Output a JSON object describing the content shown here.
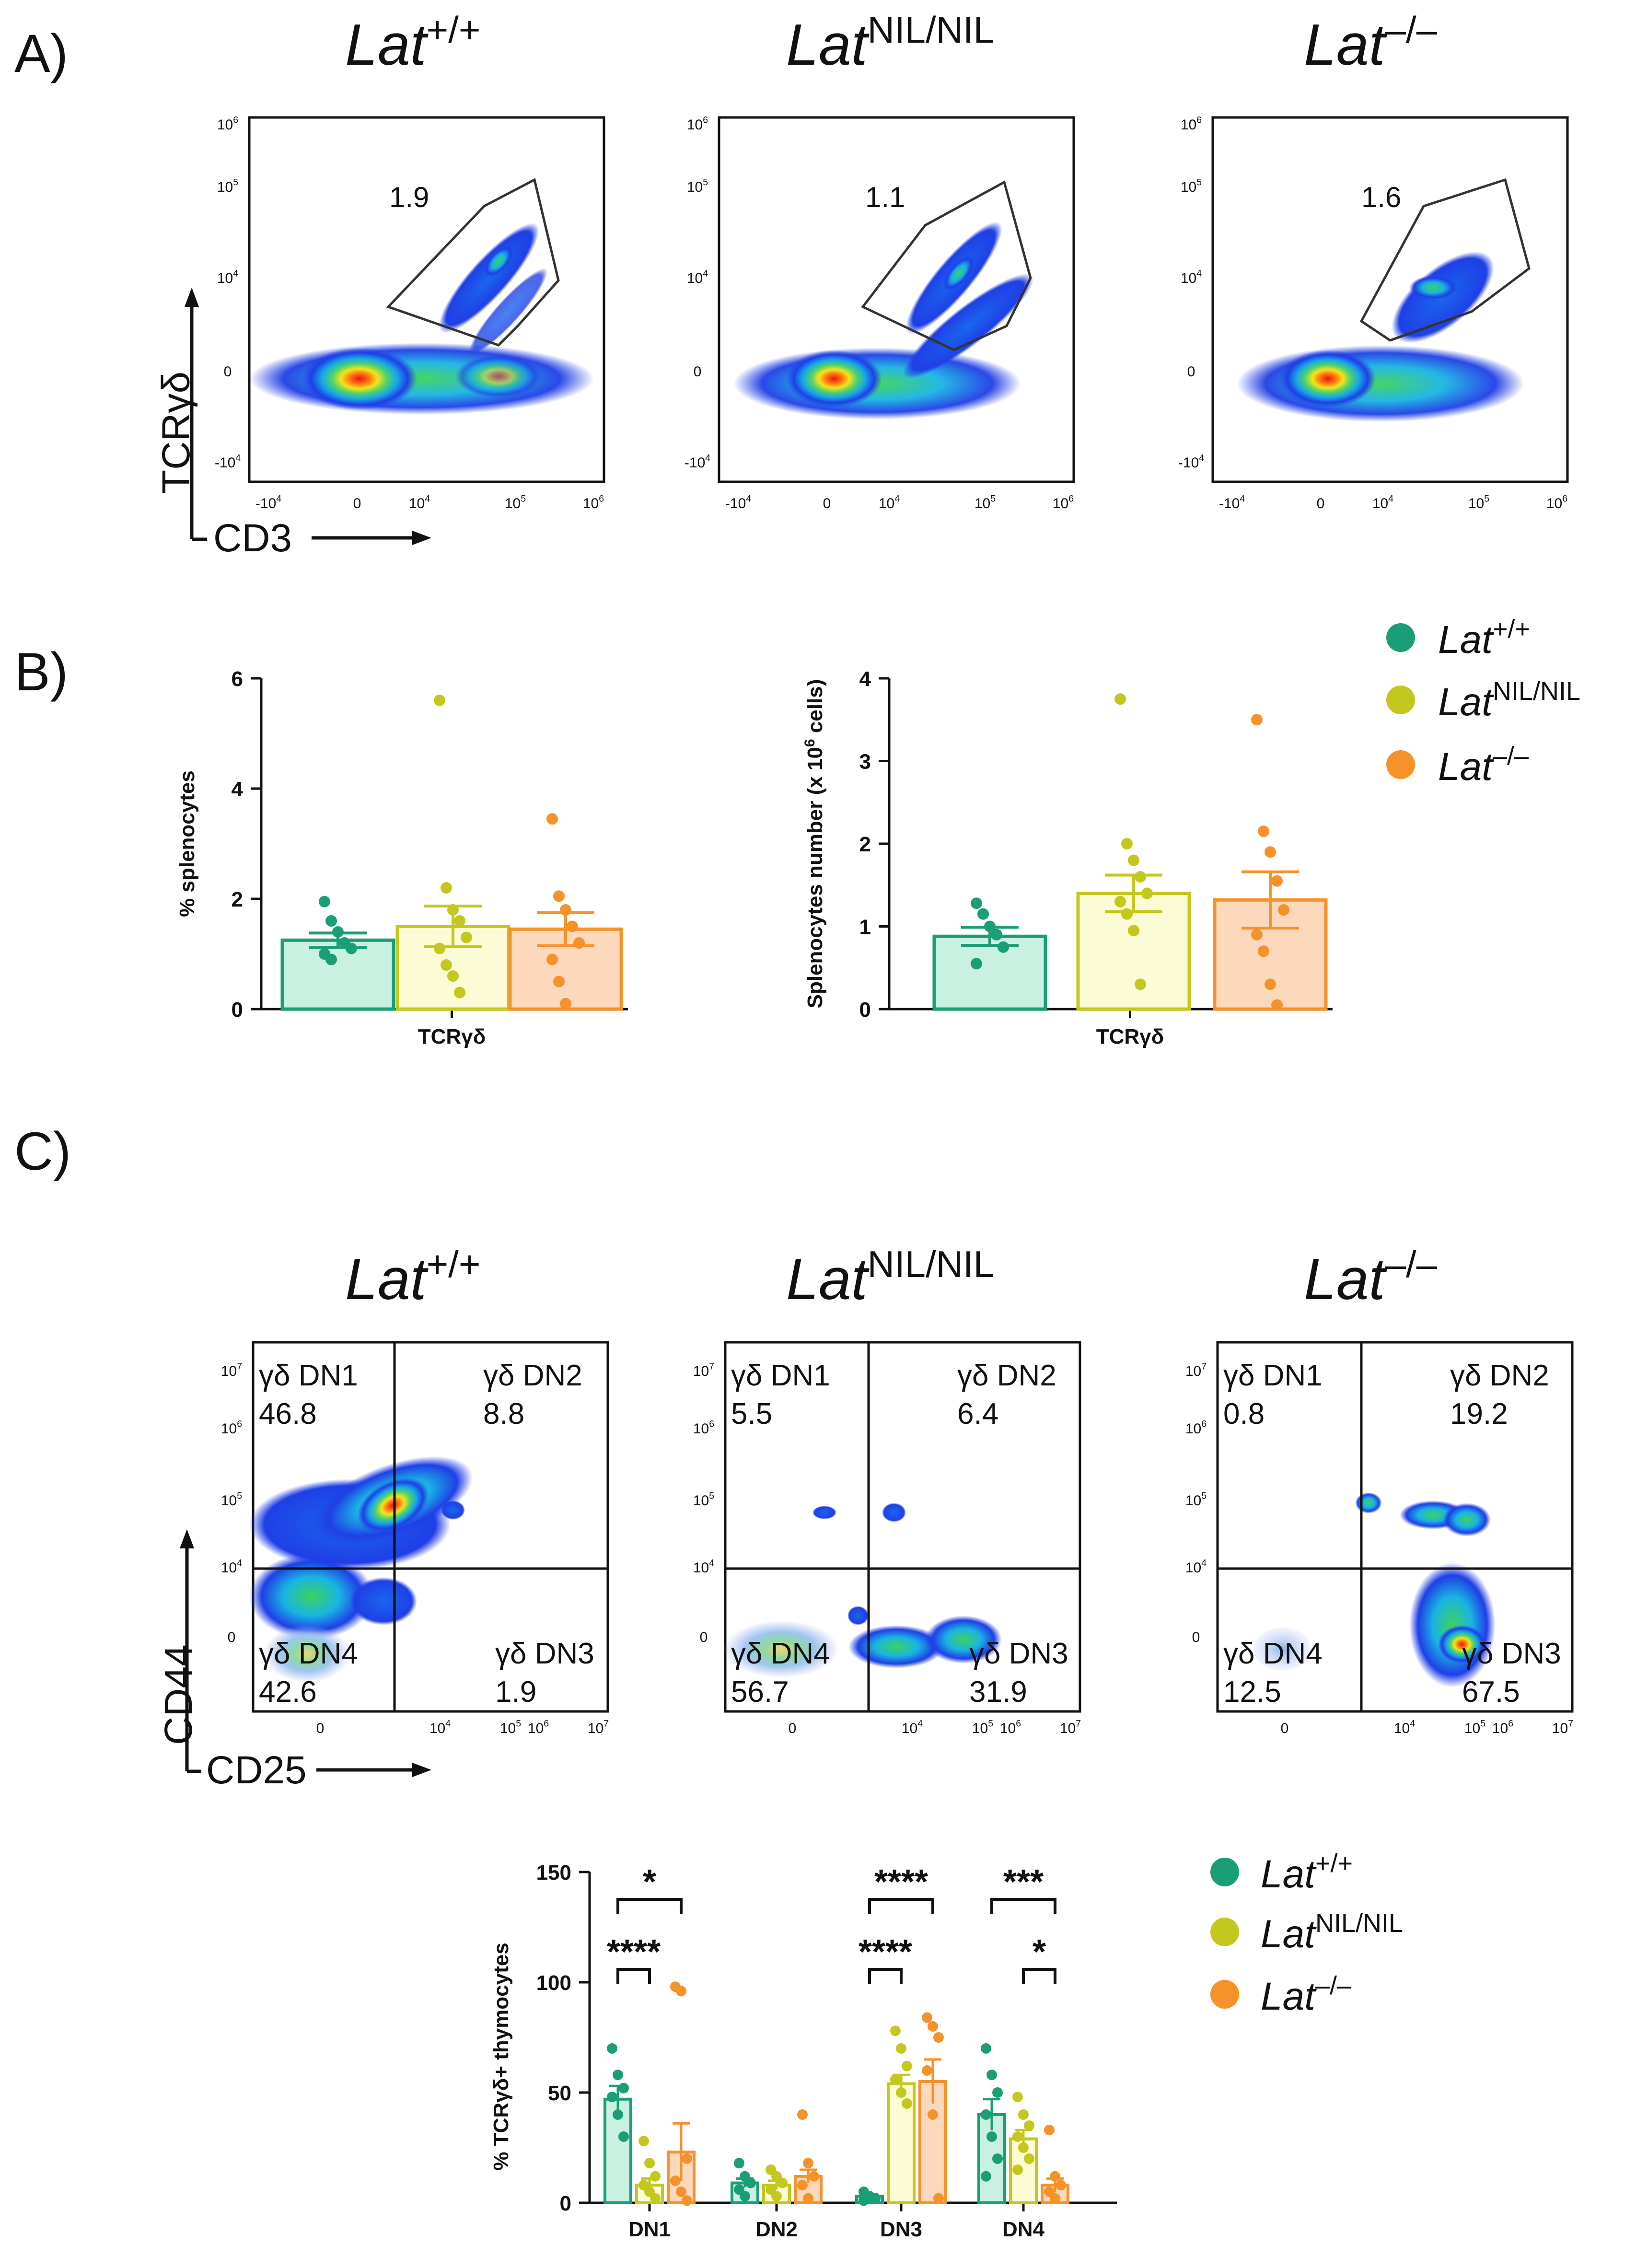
{
  "panel_labels": {
    "a": "A)",
    "b": "B)",
    "c": "C)"
  },
  "genotype_titles": [
    {
      "base": "Lat",
      "sup": "+/+"
    },
    {
      "base": "Lat",
      "sup": "NIL/NIL"
    },
    {
      "base": "Lat",
      "sup": "–/–"
    }
  ],
  "flow_a": {
    "y_axis_label": "TCRγδ",
    "x_axis_label": "CD3",
    "gate_percentages": [
      "1.9",
      "1.1",
      "1.6"
    ],
    "ticks": {
      "x": [
        {
          "base": "-10",
          "exp": "4"
        },
        {
          "base": "0",
          "exp": ""
        },
        {
          "base": "10",
          "exp": "4"
        },
        {
          "base": "10",
          "exp": "5"
        },
        {
          "base": "10",
          "exp": "6"
        }
      ],
      "y": [
        {
          "base": "10",
          "exp": "6"
        },
        {
          "base": "10",
          "exp": "5"
        },
        {
          "base": "10",
          "exp": "4"
        },
        {
          "base": "0",
          "exp": ""
        },
        {
          "base": "-10",
          "exp": "4"
        }
      ]
    }
  },
  "legend": [
    {
      "base": "Lat",
      "sup": "+/+",
      "color": "#1a9e77"
    },
    {
      "base": "Lat",
      "sup": "NIL/NIL",
      "color": "#c4c81e"
    },
    {
      "base": "Lat",
      "sup": "–/–",
      "color": "#f5922a"
    }
  ],
  "flow_c": {
    "y_axis_label": "CD44",
    "x_axis_label": "CD25",
    "plots": [
      {
        "dn1_label": "γδ DN1",
        "dn1": "46.8",
        "dn2_label": "γδ DN2",
        "dn2": "8.8",
        "dn3_label": "γδ DN3",
        "dn3": "1.9",
        "dn4_label": "γδ DN4",
        "dn4": "42.6"
      },
      {
        "dn1_label": "γδ DN1",
        "dn1": "5.5",
        "dn2_label": "γδ DN2",
        "dn2": "6.4",
        "dn3_label": "γδ DN3",
        "dn3": "31.9",
        "dn4_label": "γδ DN4",
        "dn4": "56.7"
      },
      {
        "dn1_label": "γδ DN1",
        "dn1": "0.8",
        "dn2_label": "γδ DN2",
        "dn2": "19.2",
        "dn3_label": "γδ DN3",
        "dn3": "67.5",
        "dn4_label": "γδ DN4",
        "dn4": "12.5"
      }
    ],
    "ticks": {
      "x": [
        {
          "base": "0",
          "exp": ""
        },
        {
          "base": "10",
          "exp": "4"
        },
        {
          "base": "10",
          "exp": "5"
        },
        {
          "base": "10",
          "exp": "6"
        },
        {
          "base": "10",
          "exp": "7"
        }
      ],
      "y": [
        {
          "base": "10",
          "exp": "7"
        },
        {
          "base": "10",
          "exp": "6"
        },
        {
          "base": "10",
          "exp": "5"
        },
        {
          "base": "10",
          "exp": "4"
        },
        {
          "base": "0",
          "exp": ""
        }
      ]
    }
  },
  "chart_data": [
    {
      "id": "b1",
      "type": "bar",
      "title": "",
      "xlabel": "TCRγδ",
      "ylabel": "% splenocytes",
      "ylim": [
        0,
        6
      ],
      "yticks": [
        0,
        2,
        4,
        6
      ],
      "series": [
        {
          "name": "Lat+/+",
          "mean": 1.25,
          "sem": 0.13,
          "points": [
            1.95,
            1.6,
            1.4,
            1.2,
            1.1,
            1.0,
            0.9
          ]
        },
        {
          "name": "LatNIL/NIL",
          "mean": 1.5,
          "sem": 0.37,
          "points": [
            5.6,
            2.2,
            1.8,
            1.6,
            1.3,
            1.1,
            0.8,
            0.6,
            0.3
          ]
        },
        {
          "name": "Lat–/–",
          "mean": 1.45,
          "sem": 0.3,
          "points": [
            3.45,
            2.05,
            1.8,
            1.5,
            1.2,
            0.9,
            0.5,
            0.1
          ]
        }
      ]
    },
    {
      "id": "b2",
      "type": "bar",
      "title": "",
      "xlabel": "TCRγδ",
      "ylabel_main": "Splenocytes number (x 10",
      "ylabel_exp": "6",
      "ylabel_end": " cells)",
      "ylim": [
        0,
        4
      ],
      "yticks": [
        0,
        1,
        2,
        3,
        4
      ],
      "series": [
        {
          "name": "Lat+/+",
          "mean": 0.88,
          "sem": 0.11,
          "points": [
            1.28,
            1.15,
            1.0,
            0.9,
            0.75,
            0.55
          ]
        },
        {
          "name": "LatNIL/NIL",
          "mean": 1.4,
          "sem": 0.22,
          "points": [
            3.75,
            2.0,
            1.8,
            1.6,
            1.4,
            1.3,
            1.15,
            0.95,
            0.3
          ]
        },
        {
          "name": "Lat–/–",
          "mean": 1.32,
          "sem": 0.34,
          "points": [
            3.5,
            2.15,
            1.9,
            1.55,
            1.2,
            0.9,
            0.7,
            0.3,
            0.05
          ]
        }
      ]
    },
    {
      "id": "c2",
      "type": "bar",
      "title": "",
      "ylabel": "% TCRγδ+ thymocytes",
      "categories": [
        "DN1",
        "DN2",
        "DN3",
        "DN4"
      ],
      "ylim": [
        0,
        150
      ],
      "yticks": [
        0,
        50,
        100,
        150
      ],
      "series": [
        {
          "name": "Lat+/+",
          "values": [
            47,
            9,
            3,
            40
          ],
          "sem": [
            6,
            2,
            1,
            7
          ],
          "points": [
            [
              70,
              58,
              52,
              48,
              40,
              30
            ],
            [
              18,
              12,
              9,
              6,
              3
            ],
            [
              5,
              3,
              2,
              1
            ],
            [
              70,
              58,
              50,
              40,
              30,
              20,
              12
            ]
          ]
        },
        {
          "name": "LatNIL/NIL",
          "values": [
            8,
            8,
            54,
            29
          ],
          "sem": [
            3,
            2,
            4,
            4
          ],
          "points": [
            [
              28,
              18,
              12,
              8,
              5,
              2
            ],
            [
              15,
              12,
              9,
              6,
              3
            ],
            [
              78,
              70,
              62,
              56,
              50,
              45
            ],
            [
              48,
              40,
              35,
              30,
              25,
              20,
              15
            ]
          ]
        },
        {
          "name": "Lat–/–",
          "values": [
            23,
            12,
            55,
            8
          ],
          "sem": [
            13,
            3,
            10,
            3
          ],
          "points": [
            [
              98,
              96,
              20,
              10,
              5,
              1
            ],
            [
              40,
              18,
              12,
              8,
              2
            ],
            [
              84,
              80,
              75,
              60,
              40,
              2
            ],
            [
              33,
              12,
              8,
              5,
              2
            ]
          ]
        }
      ],
      "significance": [
        {
          "label": "*",
          "group": "DN1",
          "from": 0,
          "to": 2,
          "level": "top"
        },
        {
          "label": "****",
          "group": "DN1",
          "from": 0,
          "to": 1,
          "level": "low"
        },
        {
          "label": "****",
          "group": "DN3",
          "from": 0,
          "to": 2,
          "level": "top"
        },
        {
          "label": "****",
          "group": "DN3",
          "from": 0,
          "to": 1,
          "level": "low"
        },
        {
          "label": "***",
          "group": "DN4",
          "from": 0,
          "to": 2,
          "level": "top"
        },
        {
          "label": "*",
          "group": "DN4",
          "from": 1,
          "to": 2,
          "level": "low"
        }
      ]
    }
  ],
  "colors": {
    "wt": "#1a9e77",
    "nil": "#c4c81e",
    "ko": "#f5922a",
    "wt_fill": "#c9f0e0",
    "nil_fill": "#fbfbd6",
    "ko_fill": "#fcd9bd"
  }
}
